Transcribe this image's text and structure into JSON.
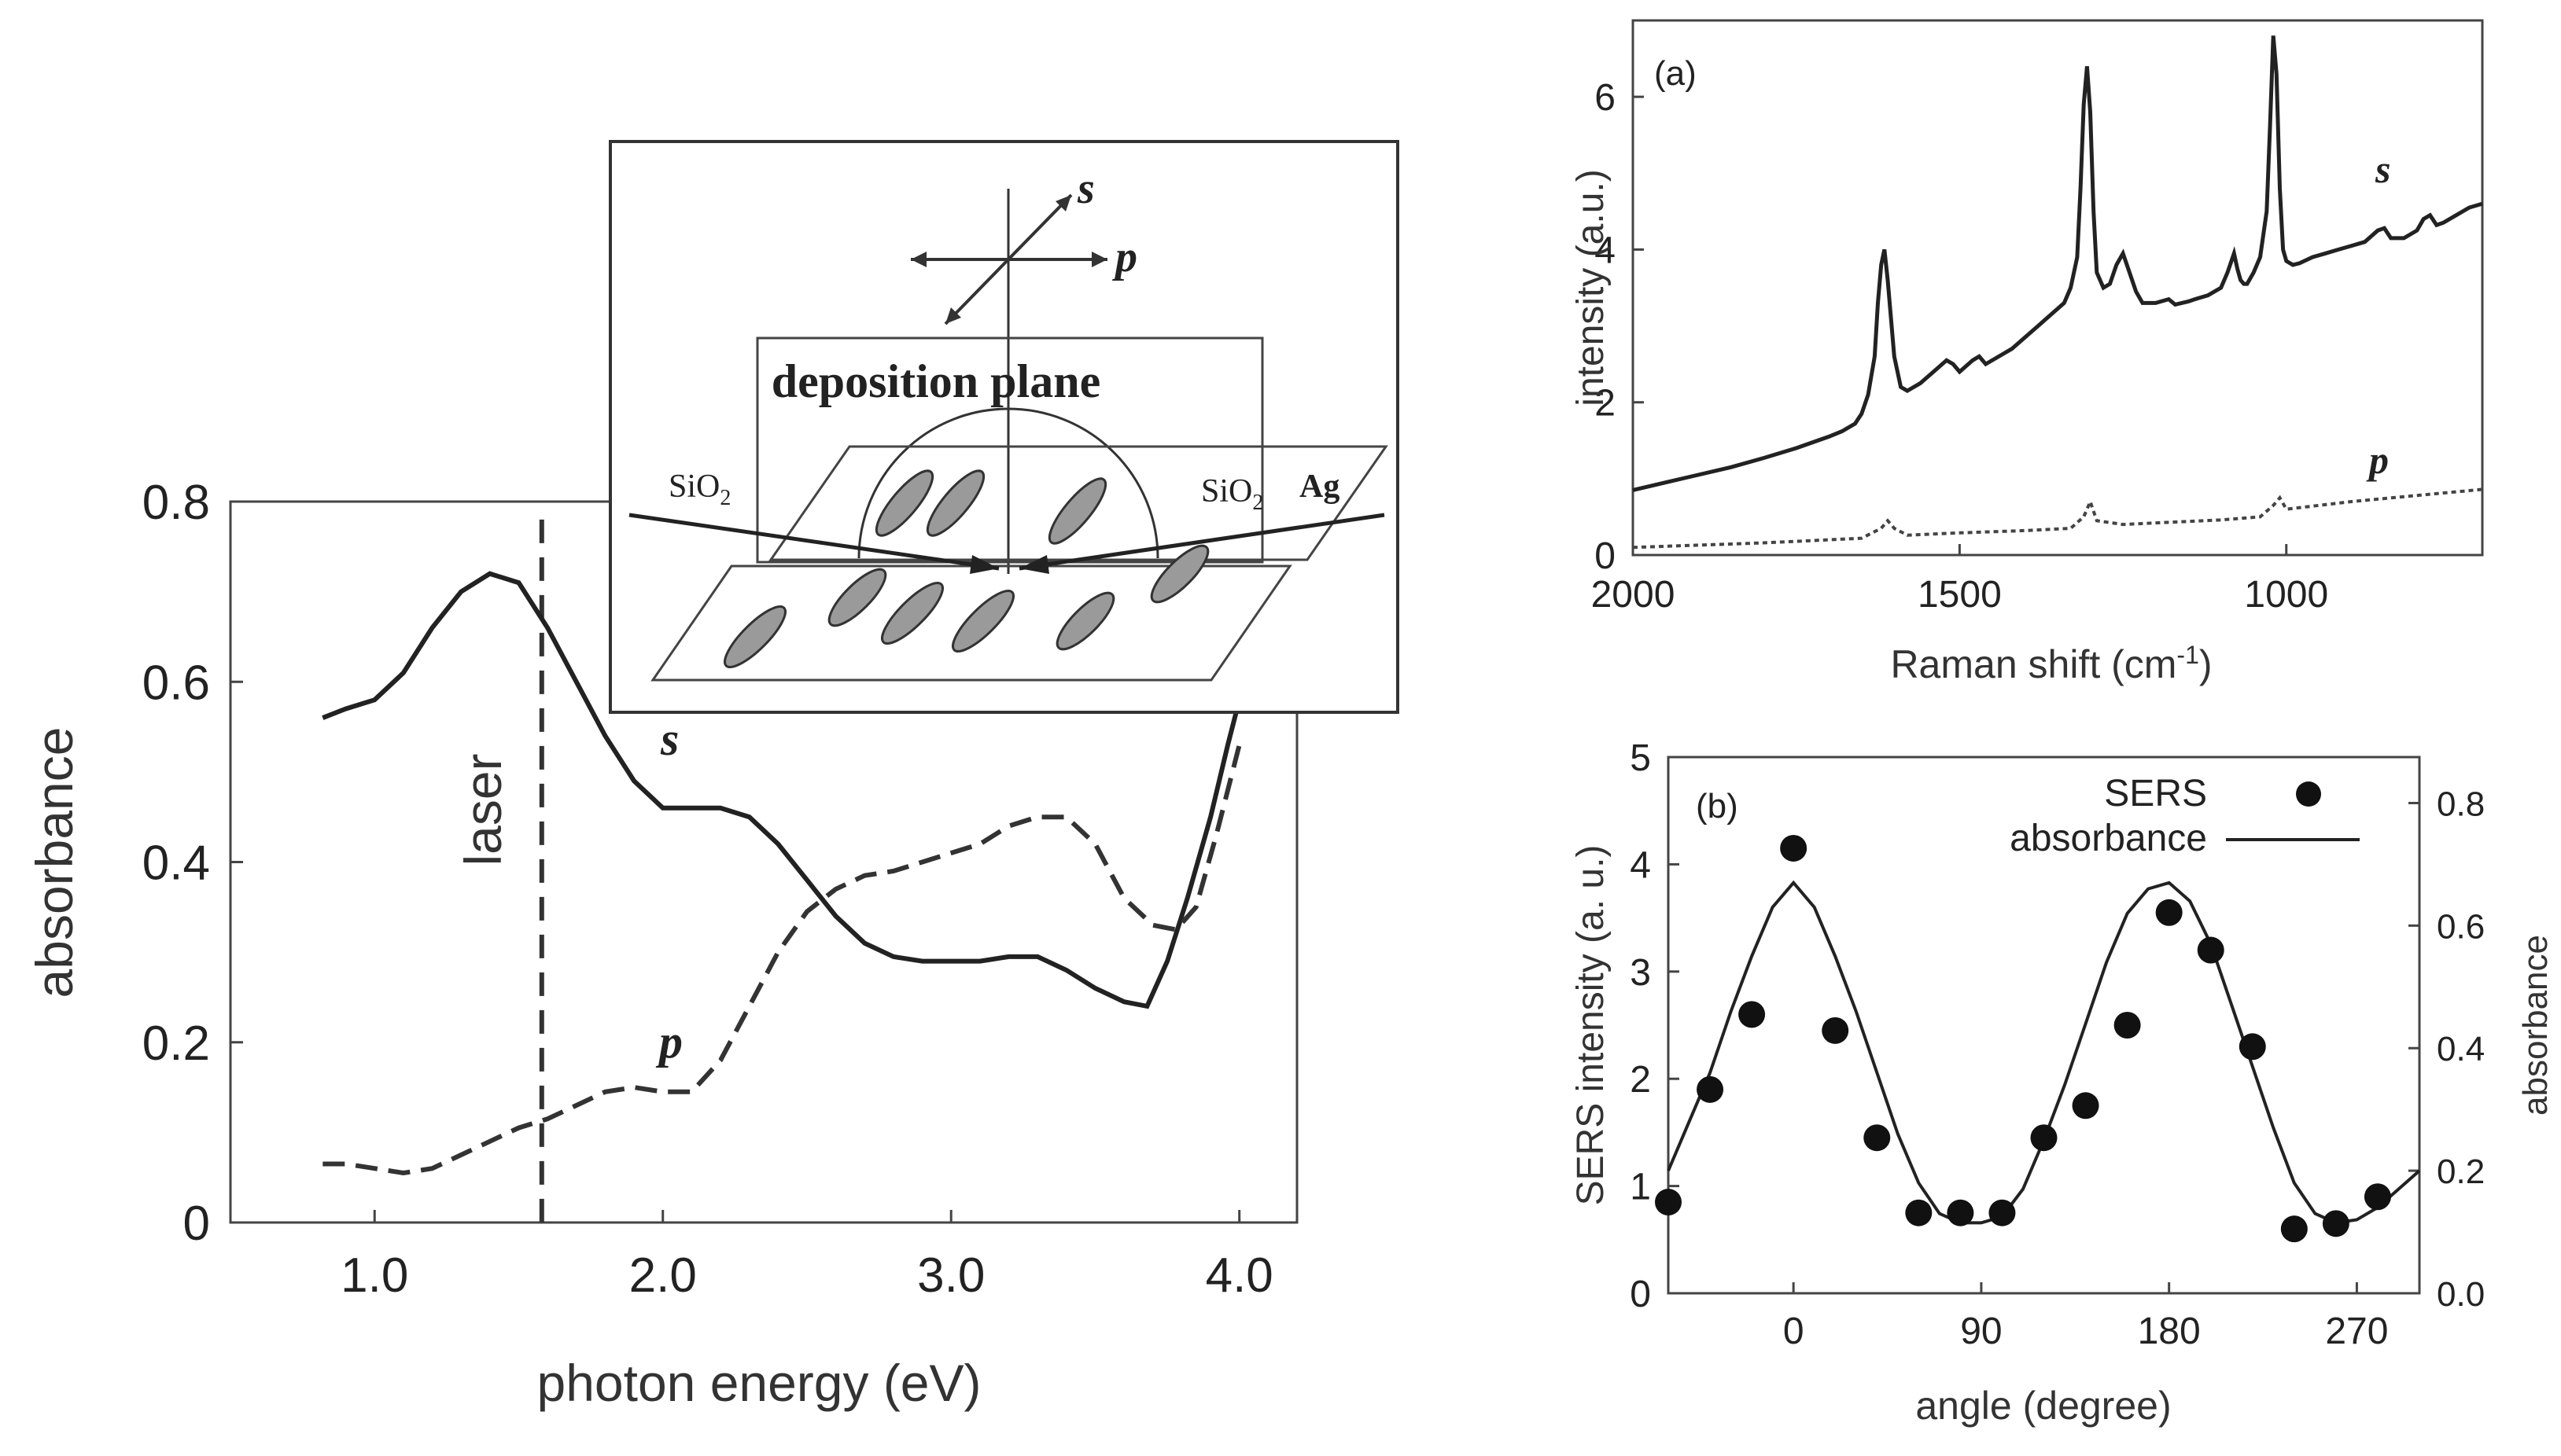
{
  "chart_data": [
    {
      "id": "left",
      "type": "line",
      "xlabel": "photon energy (eV)",
      "ylabel": "absorbance",
      "xlim": [
        0.5,
        4.2
      ],
      "ylim": [
        0,
        0.8
      ],
      "xticks": [
        "1.0",
        "2.0",
        "3.0",
        "4.0"
      ],
      "yticks": [
        "0",
        "0.2",
        "0.4",
        "0.6",
        "0.8"
      ],
      "annotations": {
        "laser": "laser",
        "laser_x": 1.58,
        "s_label": "s",
        "p_label": "p"
      },
      "series": [
        {
          "name": "s",
          "style": "solid",
          "x": [
            0.82,
            0.9,
            1.0,
            1.1,
            1.2,
            1.3,
            1.4,
            1.5,
            1.6,
            1.7,
            1.8,
            1.9,
            2.0,
            2.1,
            2.2,
            2.3,
            2.4,
            2.5,
            2.6,
            2.7,
            2.8,
            2.9,
            3.0,
            3.1,
            3.2,
            3.3,
            3.4,
            3.5,
            3.6,
            3.68,
            3.75,
            3.82,
            3.9,
            3.96,
            4.0
          ],
          "y": [
            0.56,
            0.57,
            0.58,
            0.61,
            0.66,
            0.7,
            0.72,
            0.71,
            0.66,
            0.6,
            0.54,
            0.49,
            0.46,
            0.46,
            0.46,
            0.45,
            0.42,
            0.38,
            0.34,
            0.31,
            0.295,
            0.29,
            0.29,
            0.29,
            0.295,
            0.295,
            0.28,
            0.26,
            0.245,
            0.24,
            0.29,
            0.36,
            0.45,
            0.53,
            0.58
          ]
        },
        {
          "name": "p",
          "style": "dashed",
          "x": [
            0.82,
            0.9,
            1.0,
            1.1,
            1.2,
            1.3,
            1.4,
            1.5,
            1.6,
            1.7,
            1.8,
            1.9,
            2.0,
            2.1,
            2.2,
            2.3,
            2.4,
            2.5,
            2.6,
            2.7,
            2.8,
            2.9,
            3.0,
            3.1,
            3.2,
            3.3,
            3.4,
            3.5,
            3.6,
            3.7,
            3.78,
            3.85,
            3.92,
            4.0
          ],
          "y": [
            0.065,
            0.065,
            0.06,
            0.055,
            0.06,
            0.075,
            0.09,
            0.105,
            0.115,
            0.13,
            0.145,
            0.15,
            0.145,
            0.145,
            0.18,
            0.24,
            0.3,
            0.345,
            0.37,
            0.385,
            0.39,
            0.4,
            0.41,
            0.42,
            0.44,
            0.45,
            0.45,
            0.42,
            0.36,
            0.33,
            0.325,
            0.35,
            0.43,
            0.53
          ]
        }
      ]
    },
    {
      "id": "top-right",
      "type": "line",
      "panel_label": "(a)",
      "xlabel": "Raman shift (cm",
      "xlabel_sup": "-1",
      "xlabel_end": ")",
      "ylabel": "intensity (a.u.)",
      "xlim": [
        2000,
        700
      ],
      "ylim": [
        0,
        7
      ],
      "xticks": [
        "2000",
        "1500",
        "1000"
      ],
      "yticks": [
        "0",
        "2",
        "4",
        "6"
      ],
      "series": [
        {
          "name": "s",
          "style": "solid",
          "x": [
            2000,
            1950,
            1900,
            1850,
            1800,
            1750,
            1700,
            1680,
            1660,
            1650,
            1640,
            1630,
            1625,
            1620,
            1615,
            1610,
            1600,
            1590,
            1580,
            1560,
            1540,
            1520,
            1510,
            1500,
            1480,
            1470,
            1460,
            1440,
            1420,
            1400,
            1380,
            1360,
            1340,
            1330,
            1320,
            1315,
            1310,
            1305,
            1300,
            1295,
            1290,
            1280,
            1270,
            1260,
            1250,
            1240,
            1230,
            1220,
            1200,
            1180,
            1170,
            1160,
            1150,
            1140,
            1120,
            1100,
            1090,
            1080,
            1075,
            1070,
            1065,
            1060,
            1050,
            1040,
            1030,
            1025,
            1020,
            1015,
            1010,
            1005,
            1000,
            990,
            980,
            960,
            940,
            920,
            900,
            880,
            860,
            850,
            840,
            820,
            800,
            790,
            780,
            770,
            760,
            740,
            720,
            700
          ],
          "y": [
            0.85,
            0.95,
            1.05,
            1.15,
            1.27,
            1.4,
            1.55,
            1.62,
            1.72,
            1.85,
            2.1,
            2.6,
            3.3,
            3.8,
            4.0,
            3.6,
            2.6,
            2.2,
            2.15,
            2.25,
            2.4,
            2.55,
            2.5,
            2.4,
            2.55,
            2.6,
            2.5,
            2.6,
            2.7,
            2.85,
            3.0,
            3.15,
            3.3,
            3.5,
            3.9,
            4.8,
            5.9,
            6.4,
            5.8,
            4.5,
            3.7,
            3.5,
            3.55,
            3.8,
            3.95,
            3.7,
            3.45,
            3.3,
            3.3,
            3.35,
            3.28,
            3.3,
            3.32,
            3.35,
            3.4,
            3.5,
            3.7,
            3.95,
            3.75,
            3.6,
            3.55,
            3.55,
            3.7,
            3.9,
            4.5,
            5.6,
            6.8,
            6.3,
            4.8,
            4.0,
            3.85,
            3.8,
            3.82,
            3.9,
            3.95,
            4.0,
            4.05,
            4.1,
            4.25,
            4.28,
            4.15,
            4.15,
            4.25,
            4.4,
            4.45,
            4.32,
            4.35,
            4.45,
            4.55,
            4.6
          ]
        },
        {
          "name": "p",
          "style": "dotted",
          "x": [
            2000,
            1900,
            1800,
            1700,
            1650,
            1620,
            1610,
            1600,
            1580,
            1500,
            1400,
            1330,
            1310,
            1300,
            1290,
            1250,
            1100,
            1040,
            1020,
            1010,
            1000,
            900,
            800,
            700
          ],
          "y": [
            0.1,
            0.13,
            0.16,
            0.2,
            0.22,
            0.35,
            0.45,
            0.35,
            0.26,
            0.29,
            0.32,
            0.35,
            0.5,
            0.7,
            0.45,
            0.4,
            0.46,
            0.5,
            0.65,
            0.75,
            0.6,
            0.7,
            0.78,
            0.86
          ]
        }
      ],
      "annotations": {
        "s_label": "s",
        "p_label": "p"
      }
    },
    {
      "id": "bottom-right",
      "type": "scatter",
      "panel_label": "(b)",
      "xlabel": "angle (degree)",
      "ylabel": "SERS intensity (a. u.)",
      "y2label": "absorbance",
      "xlim": [
        -60,
        300
      ],
      "ylim": [
        0,
        5
      ],
      "y2lim": [
        0,
        0.875
      ],
      "xticks": [
        "0",
        "90",
        "180",
        "270"
      ],
      "yticks": [
        "0",
        "1",
        "2",
        "3",
        "4",
        "5"
      ],
      "y2ticks": [
        "0.0",
        "0.2",
        "0.4",
        "0.6",
        "0.8"
      ],
      "legend": {
        "sers": "SERS",
        "absorbance": "absorbance"
      },
      "series": [
        {
          "name": "SERS",
          "style": "markers",
          "x": [
            -60,
            -40,
            -20,
            0,
            20,
            40,
            60,
            80,
            100,
            120,
            140,
            160,
            180,
            200,
            220,
            240,
            260,
            280
          ],
          "y": [
            0.85,
            1.9,
            2.6,
            4.15,
            2.45,
            1.45,
            0.75,
            0.75,
            0.75,
            1.45,
            1.75,
            2.5,
            3.55,
            3.2,
            2.3,
            0.6,
            0.65,
            0.9
          ]
        },
        {
          "name": "absorbance",
          "style": "solid",
          "x": [
            -60,
            -50,
            -40,
            -30,
            -20,
            -10,
            0,
            10,
            20,
            30,
            40,
            50,
            60,
            70,
            80,
            90,
            100,
            110,
            120,
            130,
            140,
            150,
            160,
            170,
            180,
            190,
            200,
            210,
            220,
            230,
            240,
            250,
            260,
            270,
            280,
            290,
            300
          ],
          "y": [
            0.2,
            0.28,
            0.36,
            0.46,
            0.55,
            0.63,
            0.67,
            0.63,
            0.55,
            0.46,
            0.36,
            0.26,
            0.18,
            0.13,
            0.115,
            0.115,
            0.125,
            0.17,
            0.25,
            0.34,
            0.44,
            0.54,
            0.62,
            0.66,
            0.67,
            0.64,
            0.57,
            0.47,
            0.37,
            0.27,
            0.18,
            0.13,
            0.115,
            0.12,
            0.14,
            0.17,
            0.2
          ]
        }
      ]
    }
  ],
  "inset": {
    "title": "deposition plane",
    "s_label": "s",
    "p_label": "p",
    "sio2_left": "SiO",
    "sio2_left_sub": "2",
    "sio2_right": "SiO",
    "sio2_right_sub": "2",
    "ag_label": "Ag"
  }
}
